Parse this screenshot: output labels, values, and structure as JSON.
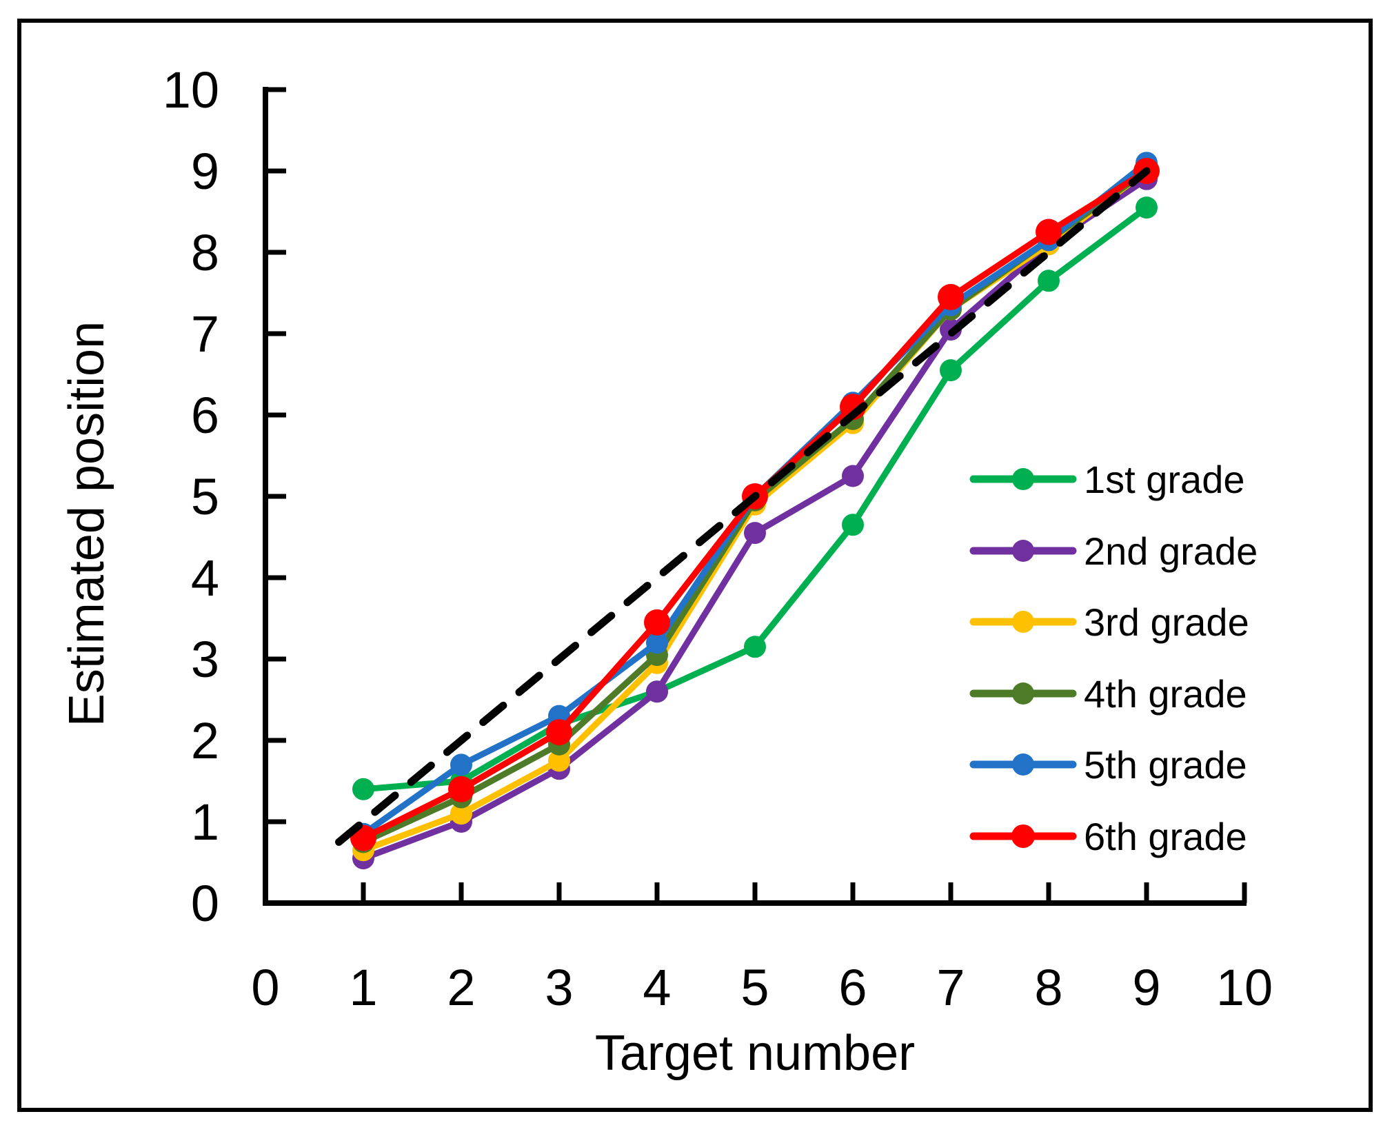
{
  "chart_data": {
    "type": "line",
    "title": "",
    "xlabel": "Target number",
    "ylabel": "Estimated position",
    "xlim": [
      0,
      10
    ],
    "ylim": [
      0,
      10
    ],
    "grid": false,
    "legend_position": "inside-right-middle",
    "x_tick_labels": [
      "0",
      "1",
      "2",
      "3",
      "4",
      "5",
      "6",
      "7",
      "8",
      "9",
      "10"
    ],
    "y_tick_labels": [
      "0",
      "1",
      "2",
      "3",
      "4",
      "5",
      "6",
      "7",
      "8",
      "9",
      "10"
    ],
    "x": [
      1,
      2,
      3,
      4,
      5,
      6,
      7,
      8,
      9
    ],
    "series": [
      {
        "name": "1st grade",
        "color": "#00B050",
        "marker": "circle",
        "values": [
          1.4,
          1.5,
          2.2,
          2.6,
          3.15,
          4.65,
          6.55,
          7.65,
          8.55
        ]
      },
      {
        "name": "2nd grade",
        "color": "#7030A0",
        "marker": "circle",
        "values": [
          0.55,
          1.0,
          1.65,
          2.6,
          4.55,
          5.25,
          7.05,
          8.1,
          8.9
        ]
      },
      {
        "name": "3rd grade",
        "color": "#FFC000",
        "marker": "circle",
        "values": [
          0.65,
          1.1,
          1.75,
          2.95,
          4.9,
          5.9,
          7.3,
          8.1,
          9.0
        ]
      },
      {
        "name": "4th grade",
        "color": "#4E7B28",
        "marker": "circle",
        "values": [
          0.75,
          1.3,
          1.95,
          3.05,
          4.95,
          5.95,
          7.3,
          8.15,
          9.0
        ]
      },
      {
        "name": "5th grade",
        "color": "#2272C8",
        "marker": "circle",
        "values": [
          0.85,
          1.7,
          2.3,
          3.2,
          5.0,
          6.15,
          7.35,
          8.15,
          9.1
        ]
      },
      {
        "name": "6th grade",
        "color": "#FF0000",
        "marker": "circle",
        "values": [
          0.8,
          1.4,
          2.1,
          3.45,
          5.0,
          6.1,
          7.45,
          8.25,
          9.0
        ]
      }
    ],
    "reference_line": {
      "style": "dashed",
      "color": "#000000",
      "from": [
        0.75,
        0.75
      ],
      "to": [
        9,
        9
      ]
    }
  }
}
